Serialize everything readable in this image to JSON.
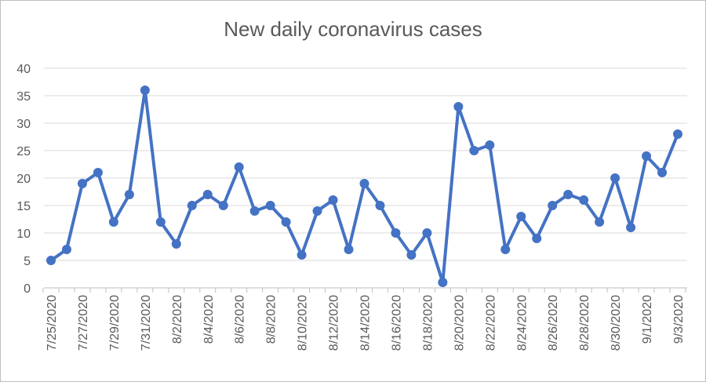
{
  "chart_data": {
    "type": "line",
    "title": "New daily coronavirus cases",
    "xlabel": "",
    "ylabel": "",
    "ylim": [
      0,
      40
    ],
    "yticks": [
      0,
      5,
      10,
      15,
      20,
      25,
      30,
      35,
      40
    ],
    "grid": true,
    "x": [
      "7/25/2020",
      "7/26/2020",
      "7/27/2020",
      "7/28/2020",
      "7/29/2020",
      "7/30/2020",
      "7/31/2020",
      "8/1/2020",
      "8/2/2020",
      "8/3/2020",
      "8/4/2020",
      "8/5/2020",
      "8/6/2020",
      "8/7/2020",
      "8/8/2020",
      "8/9/2020",
      "8/10/2020",
      "8/11/2020",
      "8/12/2020",
      "8/13/2020",
      "8/14/2020",
      "8/15/2020",
      "8/16/2020",
      "8/17/2020",
      "8/18/2020",
      "8/19/2020",
      "8/20/2020",
      "8/21/2020",
      "8/22/2020",
      "8/23/2020",
      "8/24/2020",
      "8/25/2020",
      "8/26/2020",
      "8/27/2020",
      "8/28/2020",
      "8/29/2020",
      "8/30/2020",
      "8/31/2020",
      "9/1/2020",
      "9/2/2020",
      "9/3/2020"
    ],
    "xtick_labels": [
      "7/25/2020",
      "7/27/2020",
      "7/29/2020",
      "7/31/2020",
      "8/2/2020",
      "8/4/2020",
      "8/6/2020",
      "8/8/2020",
      "8/10/2020",
      "8/12/2020",
      "8/14/2020",
      "8/16/2020",
      "8/18/2020",
      "8/20/2020",
      "8/22/2020",
      "8/24/2020",
      "8/26/2020",
      "8/28/2020",
      "8/30/2020",
      "9/1/2020",
      "9/3/2020"
    ],
    "series": [
      {
        "name": "",
        "color": "#4472c4",
        "values": [
          5,
          7,
          19,
          21,
          12,
          17,
          36,
          12,
          8,
          15,
          17,
          15,
          22,
          14,
          15,
          12,
          6,
          14,
          16,
          7,
          19,
          15,
          10,
          6,
          10,
          1,
          33,
          25,
          26,
          7,
          13,
          9,
          15,
          17,
          16,
          12,
          20,
          11,
          24,
          21,
          28
        ]
      }
    ]
  }
}
